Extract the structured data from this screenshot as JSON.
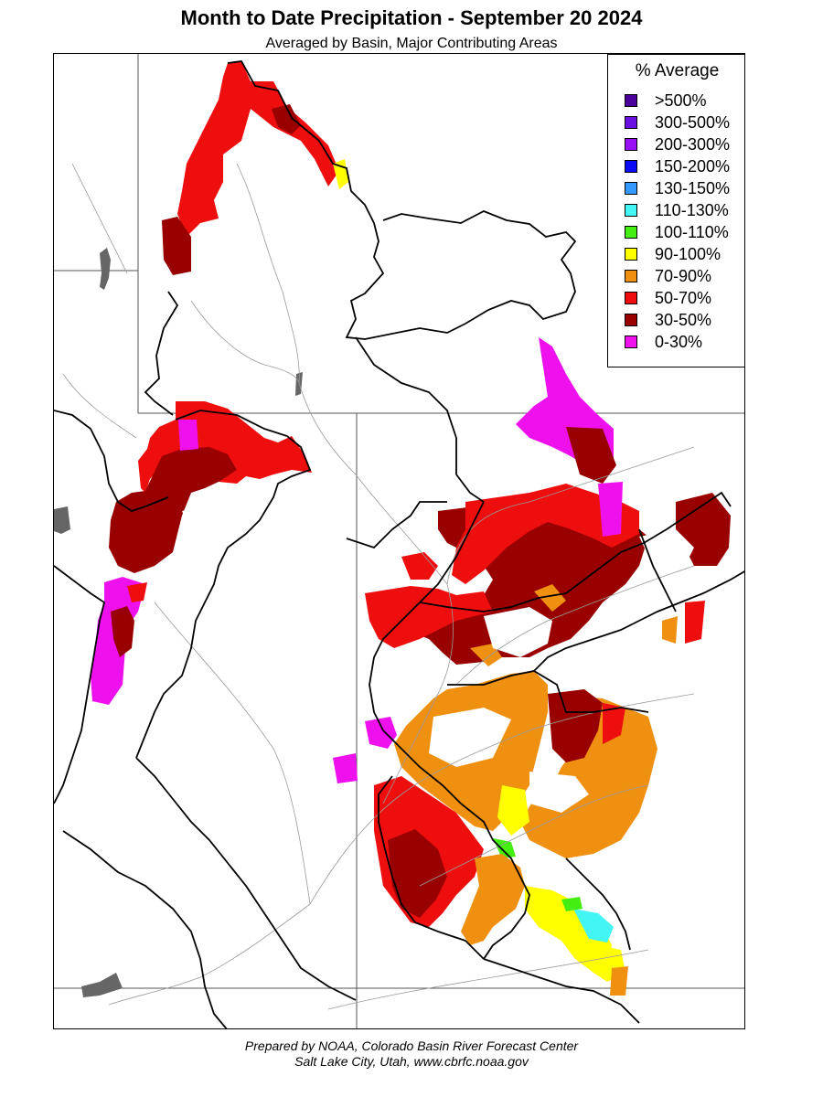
{
  "title": "Month to Date Precipitation - September 20 2024",
  "subtitle": "Averaged by Basin, Major Contributing Areas",
  "legend": {
    "title": "% Average",
    "items": [
      {
        "label": ">500%",
        "color": "#4a0099"
      },
      {
        "label": "300-500%",
        "color": "#6a10e0"
      },
      {
        "label": "200-300%",
        "color": "#9a10f5"
      },
      {
        "label": "150-200%",
        "color": "#0a0af5"
      },
      {
        "label": "130-150%",
        "color": "#3399ff"
      },
      {
        "label": "110-130%",
        "color": "#44f5f5"
      },
      {
        "label": "100-110%",
        "color": "#44ee10"
      },
      {
        "label": "90-100%",
        "color": "#ffff00"
      },
      {
        "label": "70-90%",
        "color": "#f09010"
      },
      {
        "label": "50-70%",
        "color": "#ee0e0e"
      },
      {
        "label": "30-50%",
        "color": "#990000"
      },
      {
        "label": "0-30%",
        "color": "#ee11ee"
      }
    ]
  },
  "credit": {
    "line1": "Prepared by NOAA, Colorado Basin River Forecast Center",
    "line2": "Salt Lake City, Utah, www.cbrfc.noaa.gov"
  }
}
